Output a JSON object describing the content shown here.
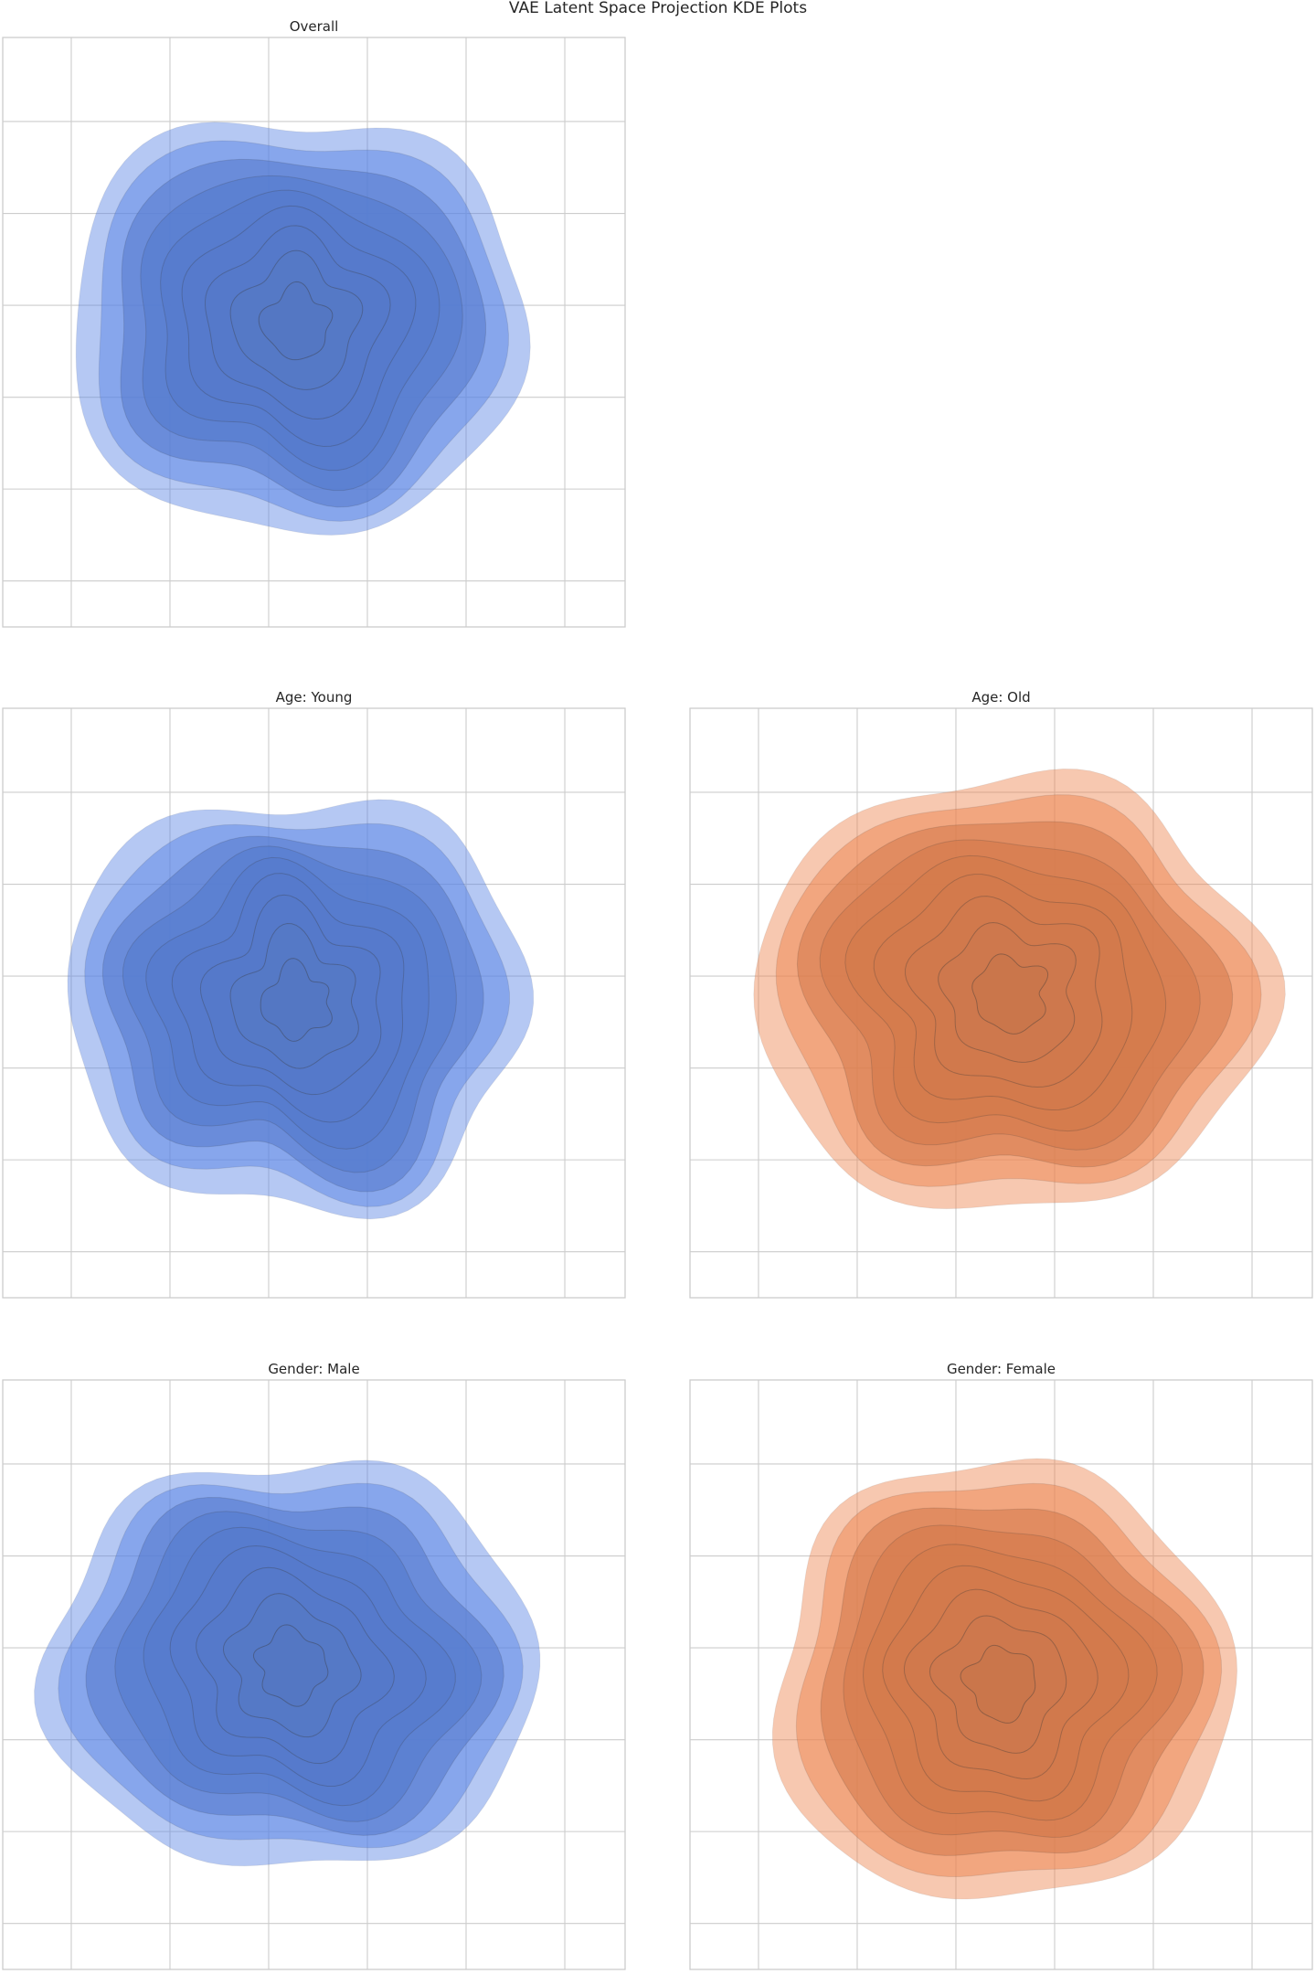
{
  "figure": {
    "title": "VAE Latent Space Projection KDE Plots"
  },
  "chart_data": [
    {
      "type": "kde",
      "title": "Overall",
      "xlabel": "",
      "ylabel": "",
      "xlim": [
        -3.5,
        3.5
      ],
      "ylim": [
        -3.5,
        3.5
      ],
      "grid": true,
      "color": "#4c72b0",
      "fill_color": "#5b86e5",
      "levels": 9,
      "center": [
        -0.2,
        0.1
      ],
      "spread": [
        1.0,
        1.0
      ],
      "seed": 11
    },
    {
      "type": "kde",
      "title": "Age: Young",
      "xlabel": "",
      "ylabel": "",
      "xlim": [
        -3.5,
        3.5
      ],
      "ylim": [
        -3.5,
        3.5
      ],
      "grid": true,
      "color": "#4c72b0",
      "fill_color": "#5b86e5",
      "levels": 9,
      "center": [
        -0.2,
        0.0
      ],
      "spread": [
        1.0,
        1.0
      ],
      "seed": 23
    },
    {
      "type": "kde",
      "title": "Age: Old",
      "xlabel": "",
      "ylabel": "",
      "xlim": [
        -3.5,
        3.5
      ],
      "ylim": [
        -3.5,
        3.5
      ],
      "grid": true,
      "color": "#dd8452",
      "fill_color": "#ee8550",
      "levels": 9,
      "center": [
        0.1,
        0.1
      ],
      "spread": [
        1.1,
        1.05
      ],
      "seed": 37
    },
    {
      "type": "kde",
      "title": "Gender: Male",
      "xlabel": "",
      "ylabel": "",
      "xlim": [
        -3.5,
        3.5
      ],
      "ylim": [
        -3.5,
        3.5
      ],
      "grid": true,
      "color": "#4c72b0",
      "fill_color": "#5b86e5",
      "levels": 9,
      "center": [
        -0.25,
        0.1
      ],
      "spread": [
        1.05,
        1.0
      ],
      "seed": 41
    },
    {
      "type": "kde",
      "title": "Gender: Female",
      "xlabel": "",
      "ylabel": "",
      "xlim": [
        -3.5,
        3.5
      ],
      "ylim": [
        -3.5,
        3.5
      ],
      "grid": true,
      "color": "#dd8452",
      "fill_color": "#ee8550",
      "levels": 9,
      "center": [
        0.0,
        -0.1
      ],
      "spread": [
        1.0,
        1.05
      ],
      "seed": 53
    }
  ]
}
